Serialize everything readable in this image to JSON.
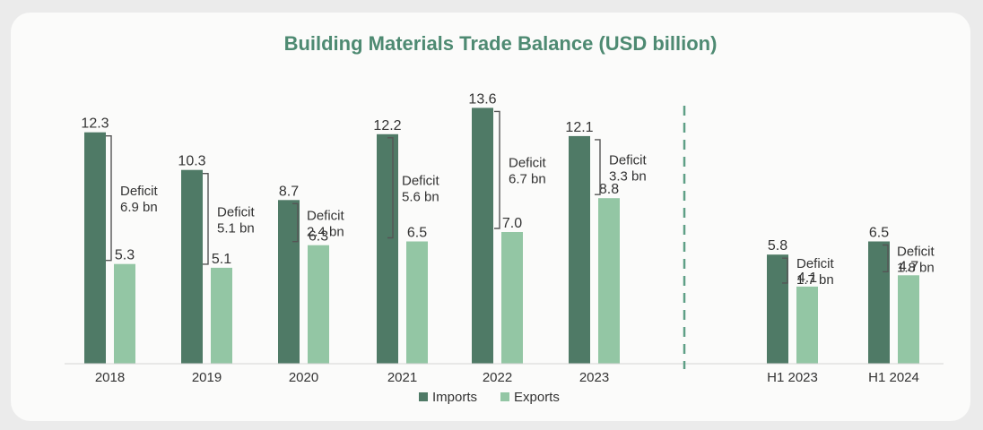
{
  "chart_data": {
    "type": "bar",
    "title": "Building Materials Trade Balance (USD billion)",
    "categories": [
      "2018",
      "2019",
      "2020",
      "2021",
      "2022",
      "2023",
      "H1 2023",
      "H1 2024"
    ],
    "series": [
      {
        "name": "Imports",
        "values": [
          12.3,
          10.3,
          8.7,
          12.2,
          13.6,
          12.1,
          5.8,
          6.5
        ],
        "color": "#4f7a66"
      },
      {
        "name": "Exports",
        "values": [
          5.3,
          5.1,
          6.3,
          6.5,
          7.0,
          8.8,
          4.1,
          4.7
        ],
        "color": "#93c6a4"
      }
    ],
    "value_labels": {
      "imports": [
        "12.3",
        "10.3",
        "8.7",
        "12.2",
        "13.6",
        "12.1",
        "5.8",
        "6.5"
      ],
      "exports": [
        "5.3",
        "5.1",
        "6.3",
        "6.5",
        "7.0",
        "8.8",
        "4.1",
        "4.7"
      ]
    },
    "annotations": [
      {
        "category": "2018",
        "line1": "Deficit",
        "line2": "6.9 bn"
      },
      {
        "category": "2019",
        "line1": "Deficit",
        "line2": "5.1 bn"
      },
      {
        "category": "2020",
        "line1": "Deficit",
        "line2": "2.4 bn"
      },
      {
        "category": "2021",
        "line1": "Deficit",
        "line2": "5.6 bn"
      },
      {
        "category": "2022",
        "line1": "Deficit",
        "line2": "6.7 bn"
      },
      {
        "category": "2023",
        "line1": "Deficit",
        "line2": "3.3 bn"
      },
      {
        "category": "H1 2023",
        "line1": "Deficit",
        "line2": "1.7 bn"
      },
      {
        "category": "H1 2024",
        "line1": "Deficit",
        "line2": "1.8 bn"
      }
    ],
    "ylim": [
      0,
      14
    ],
    "divider": {
      "style": "dashed",
      "between": [
        "2023",
        "H1 2023"
      ]
    },
    "legend_position": "bottom-center",
    "grid": false
  }
}
